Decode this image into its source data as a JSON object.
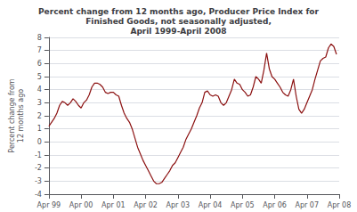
{
  "chart_data": {
    "type": "line",
    "title": "Percent change from 12 months ago, Producer Price Index for\nFinished Goods, not seasonally adjusted,\nApril 1999-April 2008",
    "ylabel": "Percent change from\n12 months ago",
    "color": "#8B1010",
    "ylim": [
      -4,
      8
    ],
    "yticks": [
      -4,
      -3,
      -2,
      -1,
      0,
      1,
      2,
      3,
      4,
      5,
      6,
      7,
      8
    ],
    "grid": true,
    "categories": [
      "Apr 99",
      null,
      null,
      null,
      null,
      null,
      null,
      null,
      null,
      null,
      null,
      null,
      "Apr 00",
      null,
      null,
      null,
      null,
      null,
      null,
      null,
      null,
      null,
      null,
      null,
      "Apr 01",
      null,
      null,
      null,
      null,
      null,
      null,
      null,
      null,
      null,
      null,
      null,
      "Apr 02",
      null,
      null,
      null,
      null,
      null,
      null,
      null,
      null,
      null,
      null,
      null,
      "Apr 03",
      null,
      null,
      null,
      null,
      null,
      null,
      null,
      null,
      null,
      null,
      null,
      "Apr 04",
      null,
      null,
      null,
      null,
      null,
      null,
      null,
      null,
      null,
      null,
      null,
      "Apr 05",
      null,
      null,
      null,
      null,
      null,
      null,
      null,
      null,
      null,
      null,
      null,
      "Apr 06",
      null,
      null,
      null,
      null,
      null,
      null,
      null,
      null,
      null,
      null,
      null,
      "Apr 07",
      null,
      null,
      null,
      null,
      null,
      null,
      null,
      null,
      null,
      null,
      null,
      "Apr 08"
    ],
    "values": [
      1.2,
      1.5,
      1.8,
      2.2,
      2.8,
      3.1,
      3.0,
      2.8,
      3.0,
      3.3,
      3.1,
      2.8,
      2.6,
      3.0,
      3.2,
      3.6,
      4.2,
      4.5,
      4.5,
      4.4,
      4.2,
      3.8,
      3.7,
      3.8,
      3.8,
      3.6,
      3.5,
      2.8,
      2.2,
      1.8,
      1.5,
      1.0,
      0.3,
      -0.4,
      -0.9,
      -1.4,
      -1.8,
      -2.2,
      -2.6,
      -3.0,
      -3.2,
      -3.2,
      -3.1,
      -2.8,
      -2.5,
      -2.2,
      -1.8,
      -1.6,
      -1.2,
      -0.8,
      -0.4,
      0.2,
      0.6,
      1.0,
      1.5,
      2.0,
      2.6,
      3.0,
      3.8,
      3.9,
      3.6,
      3.5,
      3.6,
      3.5,
      3.0,
      2.8,
      3.0,
      3.5,
      4.0,
      4.8,
      4.5,
      4.4,
      4.0,
      3.8,
      3.5,
      3.6,
      4.2,
      5.0,
      4.8,
      4.5,
      5.5,
      6.8,
      5.6,
      5.0,
      4.8,
      4.5,
      4.2,
      3.8,
      3.6,
      3.5,
      4.0,
      4.8,
      3.5,
      2.5,
      2.2,
      2.5,
      3.0,
      3.5,
      4.0,
      4.8,
      5.5,
      6.2,
      6.4,
      6.5,
      7.2,
      7.5,
      7.3,
      6.7,
      null
    ]
  }
}
